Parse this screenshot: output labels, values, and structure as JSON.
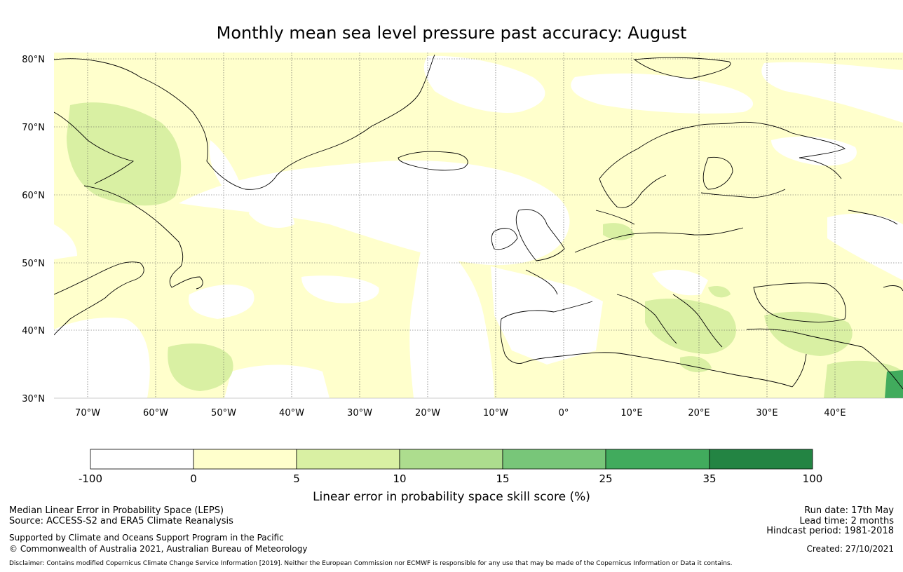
{
  "title": "Monthly mean sea level pressure past accuracy: August",
  "map": {
    "lat_labels": [
      "80°N",
      "70°N",
      "60°N",
      "50°N",
      "40°N",
      "30°N"
    ],
    "lon_labels": [
      "70°W",
      "60°W",
      "50°W",
      "40°W",
      "30°W",
      "20°W",
      "10°W",
      "0°",
      "10°E",
      "20°E",
      "30°E",
      "40°E"
    ],
    "extent": {
      "lon_min": -75,
      "lon_max": 50,
      "lat_min": 30,
      "lat_max": 81
    },
    "shading_colors": {
      "skill_0_5": "#ffffcc",
      "skill_5_10": "#d9f0a3",
      "skill_25_35": "#41ab5d"
    }
  },
  "colorbar": {
    "colors": [
      "#ffffff",
      "#ffffcc",
      "#d9f0a3",
      "#addd8e",
      "#78c679",
      "#41ab5d",
      "#238443"
    ],
    "tick_labels": [
      "-100",
      "0",
      "5",
      "10",
      "15",
      "25",
      "35",
      "100"
    ],
    "title": "Linear error in probability space skill score (%)"
  },
  "footer": {
    "left_line1": "Median Linear Error in Probability Space (LEPS)",
    "left_line2": "Source: ACCESS-S2 and ERA5 Climate Reanalysis",
    "left_line3": "Supported by Climate and Oceans Support Program in the Pacific",
    "left_line4": "© Commonwealth of Australia 2021, Australian Bureau of Meteorology",
    "right_line1": "Run date: 17th May",
    "right_line2": "Lead time: 2 months",
    "right_line3": "Hindcast period: 1981-2018",
    "right_line4": "Created: 27/10/2021",
    "disclaimer": "Disclaimer: Contains modified Copernicus Climate Change Service Information [2019]. Neither the European Commission nor ECMWF is responsible for any use that may be made of the Copernicus Information or Data it contains."
  }
}
